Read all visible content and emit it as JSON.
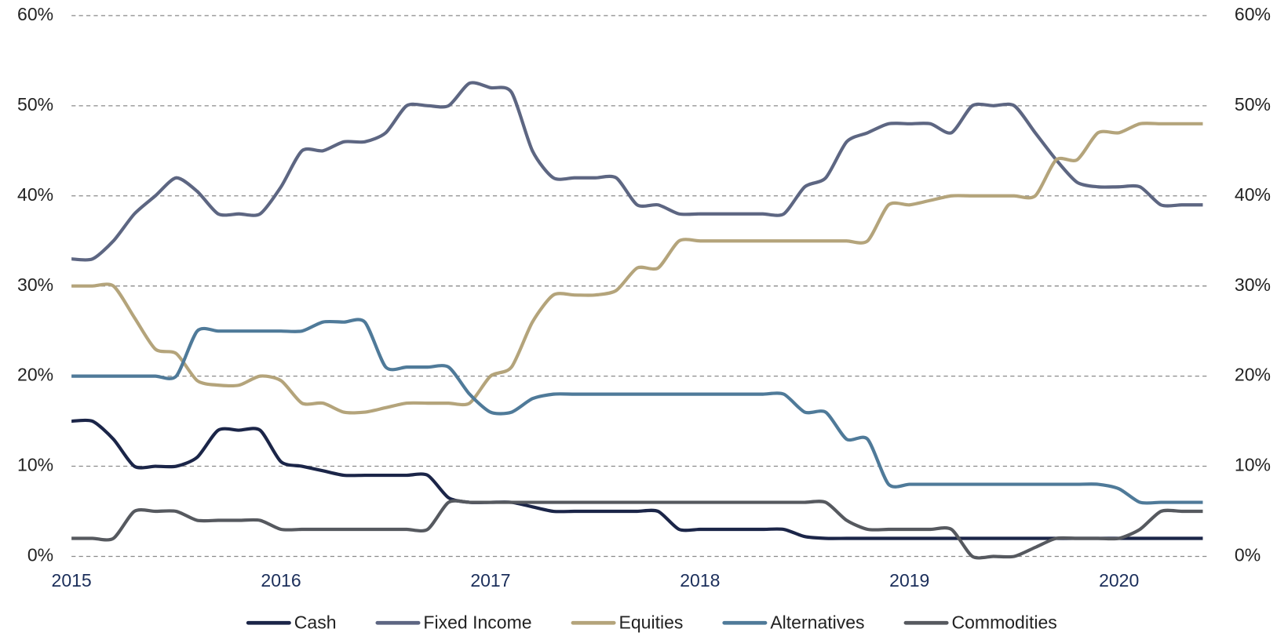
{
  "chart_data": {
    "type": "line",
    "x": [
      2015.0,
      2015.1,
      2015.2,
      2015.3,
      2015.4,
      2015.5,
      2015.6,
      2015.7,
      2015.8,
      2015.9,
      2016.0,
      2016.1,
      2016.2,
      2016.3,
      2016.4,
      2016.5,
      2016.6,
      2016.7,
      2016.8,
      2016.9,
      2017.0,
      2017.1,
      2017.2,
      2017.3,
      2017.4,
      2017.5,
      2017.6,
      2017.7,
      2017.8,
      2017.9,
      2018.0,
      2018.1,
      2018.2,
      2018.3,
      2018.4,
      2018.5,
      2018.6,
      2018.7,
      2018.8,
      2018.9,
      2019.0,
      2019.1,
      2019.2,
      2019.3,
      2019.4,
      2019.5,
      2019.6,
      2019.7,
      2019.8,
      2019.9,
      2020.0,
      2020.1,
      2020.2,
      2020.3,
      2020.4
    ],
    "series": [
      {
        "name": "Cash",
        "color": "#1b2548",
        "values": [
          15,
          15,
          13,
          10,
          10,
          10,
          11,
          14,
          14,
          14,
          10.5,
          10,
          9.5,
          9,
          9,
          9,
          9,
          9,
          6.5,
          6,
          6,
          6,
          5.5,
          5,
          5,
          5,
          5,
          5,
          5,
          3,
          3,
          3,
          3,
          3,
          3,
          2.2,
          2,
          2,
          2,
          2,
          2,
          2,
          2,
          2,
          2,
          2,
          2,
          2,
          2,
          2,
          2,
          2,
          2,
          2,
          2
        ]
      },
      {
        "name": "Fixed Income",
        "color": "#5d6682",
        "values": [
          33,
          33,
          35,
          38,
          40,
          42,
          40.5,
          38,
          38,
          38,
          41,
          45,
          45,
          46,
          46,
          47,
          50,
          50,
          50,
          52.5,
          52,
          51.5,
          45,
          42,
          42,
          42,
          42,
          39,
          39,
          38,
          38,
          38,
          38,
          38,
          38,
          41,
          42,
          46,
          47,
          48,
          48,
          48,
          47,
          50,
          50,
          50,
          47,
          44,
          41.5,
          41,
          41,
          41,
          39,
          39,
          39
        ]
      },
      {
        "name": "Equities",
        "color": "#b4a47b",
        "values": [
          30,
          30,
          30,
          26.5,
          23,
          22.5,
          19.5,
          19,
          19,
          20,
          19.5,
          17,
          17,
          16,
          16,
          16.5,
          17,
          17,
          17,
          17,
          20,
          21,
          26,
          29,
          29,
          29,
          29.5,
          32,
          32,
          35,
          35,
          35,
          35,
          35,
          35,
          35,
          35,
          35,
          35,
          39,
          39,
          39.5,
          40,
          40,
          40,
          40,
          40,
          44,
          44,
          47,
          47,
          48,
          48,
          48,
          48
        ]
      },
      {
        "name": "Alternatives",
        "color": "#4f7a99",
        "values": [
          20,
          20,
          20,
          20,
          20,
          20,
          25,
          25,
          25,
          25,
          25,
          25,
          26,
          26,
          26,
          21,
          21,
          21,
          21,
          18,
          16,
          16,
          17.5,
          18,
          18,
          18,
          18,
          18,
          18,
          18,
          18,
          18,
          18,
          18,
          18,
          16,
          16,
          13,
          13,
          8,
          8,
          8,
          8,
          8,
          8,
          8,
          8,
          8,
          8,
          8,
          7.5,
          6,
          6,
          6,
          6
        ]
      },
      {
        "name": "Commodities",
        "color": "#56595f",
        "values": [
          2,
          2,
          2,
          5,
          5,
          5,
          4,
          4,
          4,
          4,
          3,
          3,
          3,
          3,
          3,
          3,
          3,
          3,
          6,
          6,
          6,
          6,
          6,
          6,
          6,
          6,
          6,
          6,
          6,
          6,
          6,
          6,
          6,
          6,
          6,
          6,
          6,
          4,
          3,
          3,
          3,
          3,
          3,
          0,
          0,
          0,
          1,
          2,
          2,
          2,
          2,
          3,
          5,
          5,
          5
        ]
      }
    ],
    "xlim": [
      2015,
      2020.43
    ],
    "xticks": [
      2015,
      2016,
      2017,
      2018,
      2019,
      2020
    ],
    "ylim": [
      0,
      60
    ],
    "yticks": [
      {
        "value": 0,
        "label": "0%"
      },
      {
        "value": 10,
        "label": "10%"
      },
      {
        "value": 20,
        "label": "20%"
      },
      {
        "value": 30,
        "label": "30%"
      },
      {
        "value": 40,
        "label": "40%"
      },
      {
        "value": 50,
        "label": "50%"
      },
      {
        "value": 60,
        "label": "60%"
      }
    ],
    "y2lim": [
      0,
      60
    ],
    "y2ticks": [
      {
        "value": 0,
        "label": "0%"
      },
      {
        "value": 10,
        "label": "10%"
      },
      {
        "value": 20,
        "label": "20%"
      },
      {
        "value": 30,
        "label": "30%"
      },
      {
        "value": 40,
        "label": "40%"
      },
      {
        "value": 50,
        "label": "50%"
      },
      {
        "value": 60,
        "label": "60%"
      }
    ],
    "grid": true,
    "legend": "bottom"
  }
}
